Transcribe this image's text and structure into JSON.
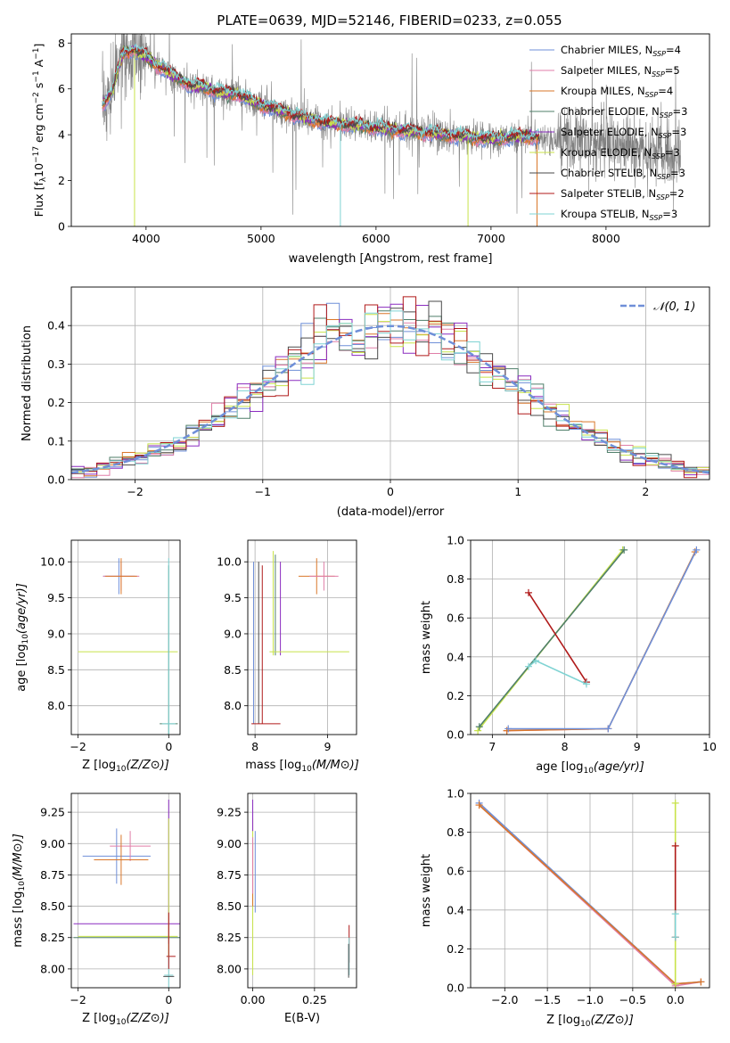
{
  "title": "PLATE=0639, MJD=52146, FIBERID=0233, z=0.055",
  "colors": {
    "Chabrier MILES": "#6f8fd8",
    "Salpeter MILES": "#e07ea8",
    "Kroupa MILES": "#d9772a",
    "Chabrier ELODIE": "#4f7f6a",
    "Salpeter ELODIE": "#8a2bbf",
    "Kroupa ELODIE": "#c8e34a",
    "Chabrier STELIB": "#4a4a4a",
    "Salpeter STELIB": "#b01a1a",
    "Kroupa STELIB": "#7fd3d3",
    "data": "#808080",
    "normal": "#6f8fd8"
  },
  "chart_data": [
    {
      "id": "spectrum",
      "type": "line",
      "title": "PLATE=0639, MJD=52146, FIBERID=0233, z=0.055",
      "xlabel": "wavelength [Angstrom, rest frame]",
      "ylabel": "Flux [f_λ 10^-17 erg cm^-2 s^-1 A^-1]",
      "xlim": [
        3350,
        8900
      ],
      "ylim": [
        0,
        8.4
      ],
      "xticks": [
        "4000",
        "5000",
        "6000",
        "7000",
        "8000"
      ],
      "yticks": [
        "0",
        "2",
        "4",
        "6",
        "8"
      ],
      "legend_position": "top-right",
      "legend": [
        {
          "label": "Chabrier MILES, N",
          "sub": "SSP",
          "value": "=4"
        },
        {
          "label": "Salpeter MILES, N",
          "sub": "SSP",
          "value": "=5"
        },
        {
          "label": "Kroupa MILES, N",
          "sub": "SSP",
          "value": "=4"
        },
        {
          "label": "Chabrier ELODIE, N",
          "sub": "SSP",
          "value": "=3"
        },
        {
          "label": "Salpeter ELODIE, N",
          "sub": "SSP",
          "value": "=3"
        },
        {
          "label": "Kroupa ELODIE, N",
          "sub": "SSP",
          "value": "=3"
        },
        {
          "label": "Chabrier STELIB, N",
          "sub": "SSP",
          "value": "=3"
        },
        {
          "label": "Salpeter STELIB, N",
          "sub": "SSP",
          "value": "=2"
        },
        {
          "label": "Kroupa STELIB, N",
          "sub": "SSP",
          "value": "=3"
        }
      ],
      "continuum": {
        "x": [
          3620,
          3700,
          3800,
          3900,
          4000,
          4100,
          4200,
          4300,
          4400,
          4500,
          4600,
          4700,
          4800,
          4900,
          5000,
          5200,
          5400,
          5600,
          5800,
          6000,
          6200,
          6400,
          6600,
          6800,
          7000,
          7200,
          7400
        ],
        "y": [
          5.3,
          5.8,
          7.6,
          7.7,
          7.4,
          7.0,
          6.7,
          6.4,
          6.1,
          6.1,
          5.9,
          5.8,
          5.8,
          5.5,
          5.3,
          5.0,
          4.7,
          4.5,
          4.4,
          4.3,
          4.2,
          4.1,
          4.0,
          3.9,
          3.8,
          3.9,
          3.9
        ]
      },
      "data_extension": {
        "x": [
          7400,
          7700,
          8000,
          8300,
          8600
        ],
        "y": [
          3.9,
          3.7,
          3.6,
          3.4,
          3.1
        ]
      }
    },
    {
      "id": "residuals",
      "type": "histogram",
      "xlabel": "(data-model)/error",
      "ylabel": "Normed distribution",
      "xlim": [
        -2.5,
        2.5
      ],
      "ylim": [
        0,
        0.5
      ],
      "xticks": [
        "−2",
        "−1",
        "0",
        "1",
        "2"
      ],
      "yticks": [
        "0.0",
        "0.1",
        "0.2",
        "0.3",
        "0.4"
      ],
      "legend": "𝒩(0, 1)",
      "legend_position": "top-right",
      "bin_width": 0.1
    },
    {
      "id": "age-vs-Z",
      "type": "scatter",
      "xlabel": "Z [log10(Z/Z⊙)]",
      "ylabel": "age [log10(age/yr)]",
      "xlim": [
        -2.15,
        0.25
      ],
      "ylim": [
        7.6,
        10.3
      ],
      "xticks": [
        "−2",
        "0"
      ],
      "yticks": [
        "8.0",
        "8.5",
        "9.0",
        "9.5",
        "10.0"
      ],
      "points": [
        {
          "model": "Chabrier MILES",
          "x": -1.1,
          "y": 9.8,
          "xerr": 0.35,
          "yerr": 0.25
        },
        {
          "model": "Salpeter MILES",
          "x": -1.05,
          "y": 9.8,
          "xerr": 0.4,
          "yerr": 0.2
        },
        {
          "model": "Kroupa MILES",
          "x": -1.05,
          "y": 9.8,
          "xerr": 0.35,
          "yerr": 0.25
        },
        {
          "model": "Kroupa ELODIE",
          "x": -0.9,
          "y": 8.75,
          "xerr": 1.1,
          "yerr": 0
        },
        {
          "model": "Chabrier ELODIE",
          "x": 0,
          "y": 7.75,
          "xerr": 0.2,
          "yerr": 2.2
        },
        {
          "model": "Kroupa STELIB",
          "x": 0,
          "y": 7.75,
          "xerr": 0.15,
          "yerr": 2.3
        }
      ]
    },
    {
      "id": "age-vs-mass",
      "type": "scatter",
      "xlabel": "mass [log10(M/M⊙)]",
      "ylabel": "",
      "xlim": [
        7.9,
        9.4
      ],
      "ylim": [
        7.6,
        10.3
      ],
      "xticks": [
        "8",
        "9"
      ],
      "yticks": [
        "8.0",
        "8.5",
        "9.0",
        "9.5",
        "10.0"
      ],
      "vlines": [
        {
          "model": "Chabrier MILES",
          "x": 7.98,
          "y0": 7.75,
          "y1": 10.0
        },
        {
          "model": "Chabrier STELIB",
          "x": 8.05,
          "y0": 7.75,
          "y1": 10.0
        },
        {
          "model": "Salpeter STELIB",
          "x": 8.1,
          "y0": 7.75,
          "y1": 9.95
        },
        {
          "model": "Kroupa ELODIE",
          "x": 8.25,
          "y0": 8.7,
          "y1": 10.15
        },
        {
          "model": "Chabrier ELODIE",
          "x": 8.28,
          "y0": 8.7,
          "y1": 10.1
        },
        {
          "model": "Salpeter ELODIE",
          "x": 8.35,
          "y0": 8.7,
          "y1": 10.0
        }
      ],
      "crosses": [
        {
          "model": "Kroupa MILES",
          "x": 8.85,
          "y": 9.8,
          "xerr": 0.25,
          "yerr": 0.25
        },
        {
          "model": "Salpeter MILES",
          "x": 8.95,
          "y": 9.8,
          "xerr": 0.2,
          "yerr": 0.2
        },
        {
          "model": "Kroupa ELODIE",
          "x": 8.75,
          "y": 8.75,
          "xerr": 0.55,
          "yerr": 0
        },
        {
          "model": "Salpeter STELIB",
          "x": 8.15,
          "y": 7.75,
          "xerr": 0.2,
          "yerr": 0
        }
      ]
    },
    {
      "id": "weight-vs-age",
      "type": "line",
      "xlabel": "age [log10(age/yr)]",
      "ylabel": "mass weight",
      "xlim": [
        6.7,
        10.0
      ],
      "ylim": [
        0,
        1.0
      ],
      "xticks": [
        "7",
        "8",
        "9",
        "10"
      ],
      "yticks": [
        "0.0",
        "0.2",
        "0.4",
        "0.6",
        "0.8",
        "1.0"
      ],
      "series": [
        {
          "model": "Kroupa ELODIE",
          "x": [
            6.8,
            8.8
          ],
          "y": [
            0.02,
            0.95
          ]
        },
        {
          "model": "Chabrier ELODIE",
          "x": [
            6.82,
            8.82
          ],
          "y": [
            0.04,
            0.95
          ]
        },
        {
          "model": "Salpeter STELIB",
          "x": [
            7.5,
            8.3
          ],
          "y": [
            0.73,
            0.27
          ]
        },
        {
          "model": "Kroupa STELIB",
          "x": [
            7.5,
            7.6,
            8.3
          ],
          "y": [
            0.35,
            0.38,
            0.26
          ]
        },
        {
          "model": "Salpeter MILES",
          "x": [
            7.2,
            8.6
          ],
          "y": [
            0.02,
            0.03
          ]
        },
        {
          "model": "Kroupa MILES",
          "x": [
            7.2,
            8.6,
            9.8
          ],
          "y": [
            0.02,
            0.03,
            0.94
          ]
        },
        {
          "model": "Chabrier MILES",
          "x": [
            7.22,
            8.6,
            9.82
          ],
          "y": [
            0.03,
            0.03,
            0.95
          ]
        }
      ]
    },
    {
      "id": "mass-vs-Z",
      "type": "scatter",
      "xlabel": "Z [log10(Z/Z⊙)]",
      "ylabel": "mass [log10(M/M⊙)]",
      "xlim": [
        -2.15,
        0.25
      ],
      "ylim": [
        7.85,
        9.4
      ],
      "xticks": [
        "−2",
        "0"
      ],
      "yticks": [
        "8.00",
        "8.25",
        "8.50",
        "8.75",
        "9.00",
        "9.25"
      ],
      "crosses": [
        {
          "model": "Chabrier MILES",
          "x": -1.15,
          "y": 8.9,
          "xerr": 0.75,
          "yerr": 0.22
        },
        {
          "model": "Salpeter MILES",
          "x": -0.85,
          "y": 8.98,
          "xerr": 0.45,
          "yerr": 0.12
        },
        {
          "model": "Kroupa MILES",
          "x": -1.05,
          "y": 8.87,
          "xerr": 0.6,
          "yerr": 0.2
        },
        {
          "model": "Salpeter ELODIE",
          "x": -0.9,
          "y": 8.36,
          "xerr": 1.2,
          "yerr": 0
        },
        {
          "model": "Kroupa ELODIE",
          "x": -0.9,
          "y": 8.26,
          "xerr": 1.1,
          "yerr": 0
        },
        {
          "model": "Chabrier ELODIE",
          "x": -0.9,
          "y": 8.25,
          "xerr": 1.2,
          "yerr": 0
        },
        {
          "model": "Salpeter STELIB",
          "x": 0.05,
          "y": 8.1,
          "xerr": 0.1,
          "yerr": 0
        },
        {
          "model": "Kroupa STELIB",
          "x": 0.0,
          "y": 7.95,
          "xerr": 0.1,
          "yerr": 0.3
        },
        {
          "model": "Chabrier STELIB",
          "x": 0.0,
          "y": 7.94,
          "xerr": 0.12,
          "yerr": 0
        }
      ],
      "vlines": [
        {
          "model": "Salpeter ELODIE",
          "x": 0.0,
          "y0": 8.2,
          "y1": 9.35
        },
        {
          "model": "Kroupa ELODIE",
          "x": 0.0,
          "y0": 8.1,
          "y1": 9.2
        },
        {
          "model": "Salpeter STELIB",
          "x": 0.0,
          "y0": 8.0,
          "y1": 8.45
        }
      ]
    },
    {
      "id": "mass-vs-ebv",
      "type": "scatter",
      "xlabel": "E(B-V)",
      "ylabel": "",
      "xlim": [
        -0.02,
        0.42
      ],
      "ylim": [
        7.85,
        9.4
      ],
      "xticks": [
        "0.00",
        "0.25"
      ],
      "yticks": [
        "8.00",
        "8.25",
        "8.50",
        "8.75",
        "9.00",
        "9.25"
      ],
      "vlines": [
        {
          "model": "Kroupa ELODIE",
          "x": 0.0,
          "y0": 7.95,
          "y1": 9.2
        },
        {
          "model": "Salpeter ELODIE",
          "x": 0.0,
          "y0": 9.1,
          "y1": 9.35
        },
        {
          "model": "Chabrier MILES",
          "x": 0.01,
          "y0": 8.45,
          "y1": 9.1
        },
        {
          "model": "Kroupa MILES",
          "x": 0.0,
          "y0": 8.5,
          "y1": 9.0
        },
        {
          "model": "Salpeter MILES",
          "x": 0.0,
          "y0": 8.6,
          "y1": 9.05
        },
        {
          "model": "Salpeter STELIB",
          "x": 0.39,
          "y0": 8.05,
          "y1": 8.35
        },
        {
          "model": "Kroupa STELIB",
          "x": 0.39,
          "y0": 7.95,
          "y1": 8.25
        },
        {
          "model": "Chabrier STELIB",
          "x": 0.388,
          "y0": 7.93,
          "y1": 8.2
        }
      ]
    },
    {
      "id": "weight-vs-Z",
      "type": "line",
      "xlabel": "Z [log10(Z/Z⊙)]",
      "ylabel": "mass weight",
      "xlim": [
        -2.4,
        0.4
      ],
      "ylim": [
        0,
        1.0
      ],
      "xticks": [
        "−2.0",
        "−1.5",
        "−1.0",
        "−0.5",
        "0.0"
      ],
      "yticks": [
        "0.0",
        "0.2",
        "0.4",
        "0.6",
        "0.8",
        "1.0"
      ],
      "series": [
        {
          "model": "Salpeter MILES",
          "x": [
            -2.3,
            0.0,
            0.3
          ],
          "y": [
            0.94,
            0.01,
            0.03
          ]
        },
        {
          "model": "Chabrier MILES",
          "x": [
            -2.3,
            0.0,
            0.3
          ],
          "y": [
            0.95,
            0.02,
            0.03
          ]
        },
        {
          "model": "Kroupa MILES",
          "x": [
            -2.3,
            0.0,
            0.3
          ],
          "y": [
            0.94,
            0.02,
            0.03
          ]
        },
        {
          "model": "Kroupa ELODIE",
          "x": [
            0.0,
            0.0
          ],
          "y": [
            0.02,
            0.95
          ]
        },
        {
          "model": "Salpeter STELIB",
          "x": [
            0.0,
            0.0
          ],
          "y": [
            0.26,
            0.73
          ]
        },
        {
          "model": "Kroupa STELIB",
          "x": [
            0.0,
            0.0
          ],
          "y": [
            0.26,
            0.38
          ]
        }
      ]
    }
  ]
}
